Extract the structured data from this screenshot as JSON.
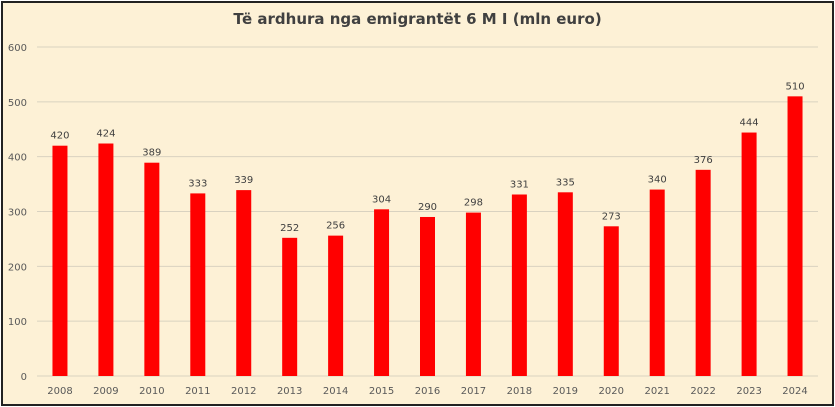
{
  "chart_data": {
    "type": "bar",
    "title": "Të ardhura nga emigrantët 6 M I  (mln euro)",
    "categories": [
      "2008",
      "2009",
      "2010",
      "2011",
      "2012",
      "2013",
      "2014",
      "2015",
      "2016",
      "2017",
      "2018",
      "2019",
      "2020",
      "2021",
      "2022",
      "2023",
      "2024"
    ],
    "values": [
      420,
      424,
      389,
      333,
      339,
      252,
      256,
      304,
      290,
      298,
      331,
      335,
      273,
      340,
      376,
      444,
      510
    ],
    "ylim": [
      0,
      600
    ],
    "yticks": [
      0,
      100,
      200,
      300,
      400,
      500,
      600
    ],
    "xlabel": "",
    "ylabel": "",
    "grid": true,
    "data_labels": true,
    "bar_color": "#FF0000",
    "background_color": "#FDF1D6"
  }
}
